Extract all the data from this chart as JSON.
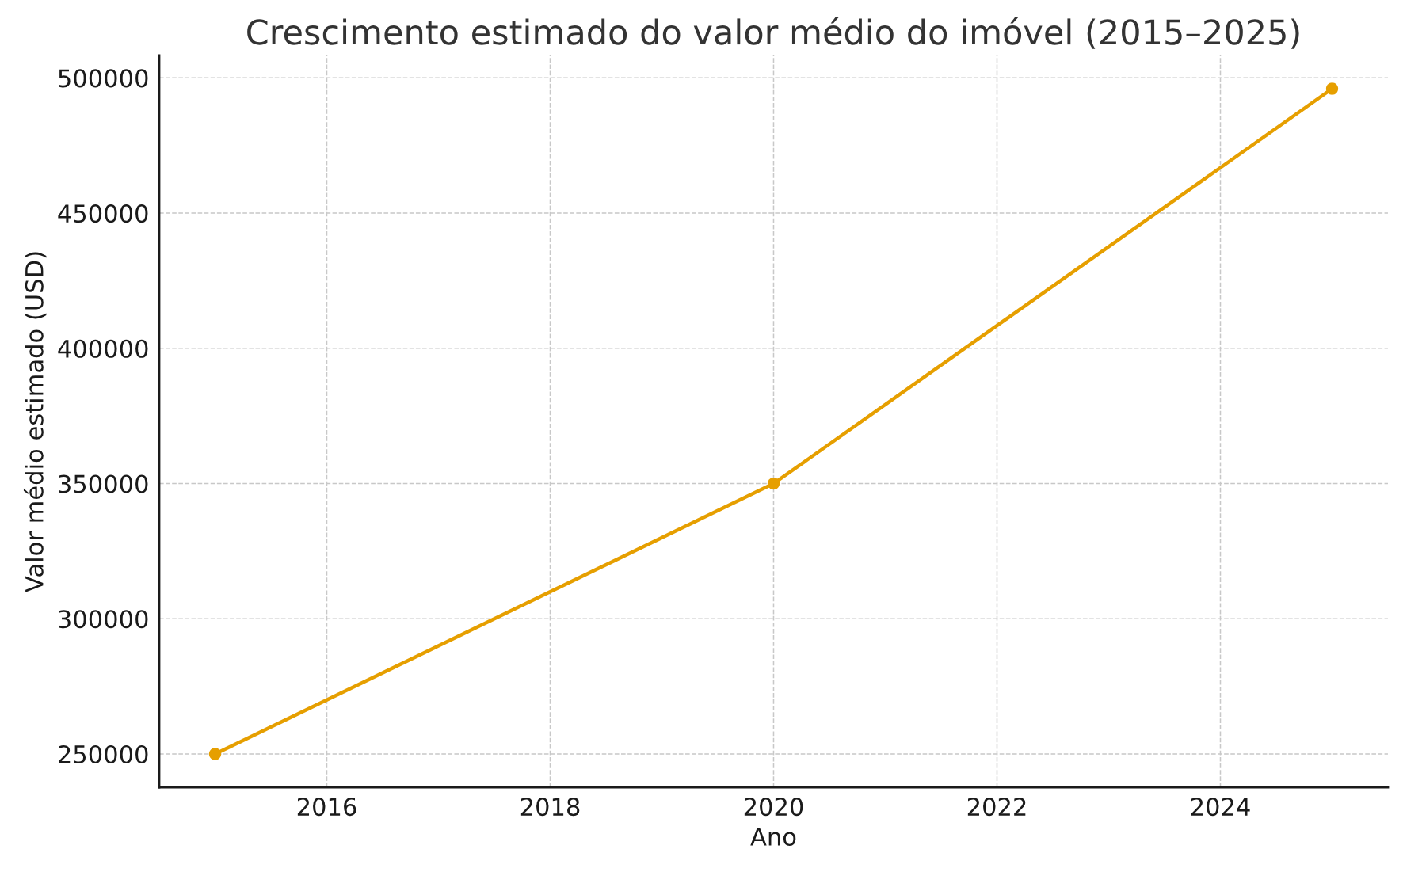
{
  "chart_data": {
    "type": "line",
    "title": "Crescimento estimado do valor médio do imóvel (2015–2025)",
    "xlabel": "Ano",
    "ylabel": "Valor médio estimado (USD)",
    "x": [
      2015,
      2020,
      2025
    ],
    "series": [
      {
        "color": "#e69f00",
        "values": [
          250000,
          350000,
          496000
        ]
      }
    ],
    "xlim": [
      2014.5,
      2025.5
    ],
    "ylim": [
      237700,
      508300
    ],
    "xticks": [
      2016,
      2018,
      2020,
      2022,
      2024
    ],
    "yticks": [
      250000,
      300000,
      350000,
      400000,
      450000,
      500000
    ],
    "grid": true,
    "marker": "circle",
    "line_style": "solid"
  }
}
